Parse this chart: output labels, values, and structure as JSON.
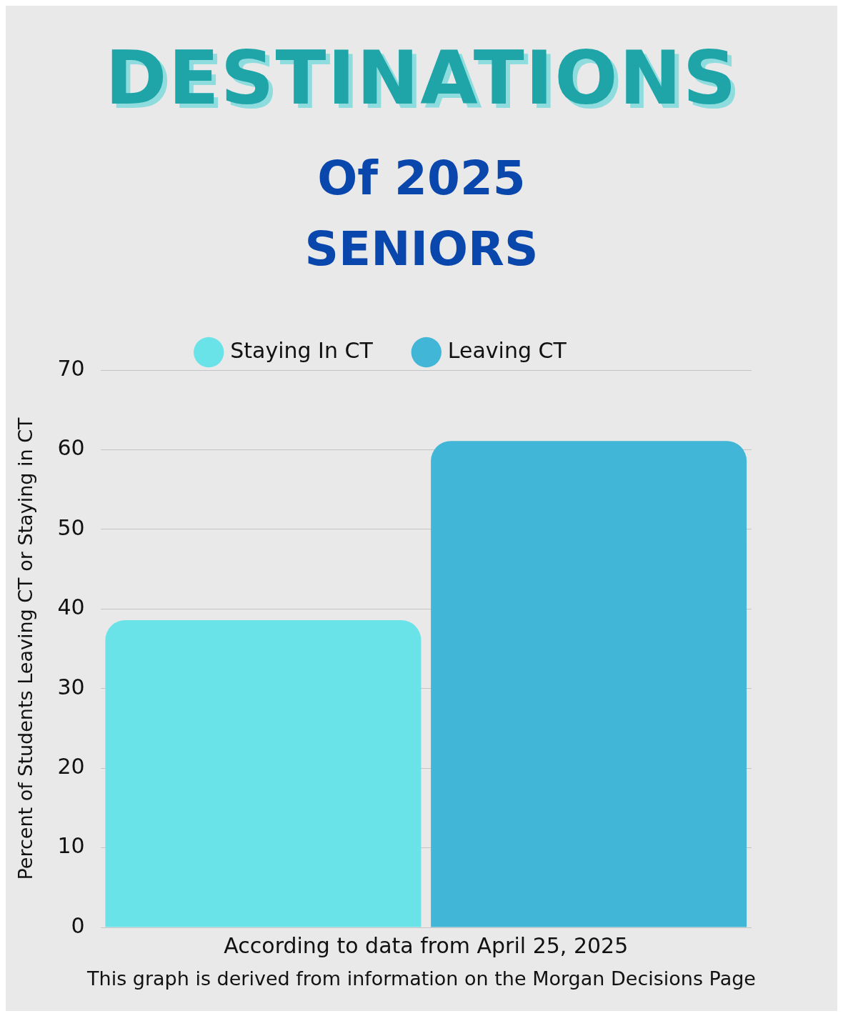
{
  "chart_data": {
    "type": "bar",
    "title": "DESTINATIONS",
    "subtitle": "Of 2025 SENIORS",
    "categories": [
      null
    ],
    "series": [
      {
        "name": "Staying In CT",
        "color": "#6ae3e8",
        "values": [
          38.6
        ]
      },
      {
        "name": "Leaving CT",
        "color": "#42b6d6",
        "values": [
          61.1
        ]
      }
    ],
    "ylabel": "Percent of Students Leaving CT or Staying in CT",
    "xlabel": "According to data from April 25, 2025",
    "annotations": [
      "This graph is derived from  information on the Morgan Decisions Page"
    ],
    "ylim": [
      0,
      70
    ],
    "yticks": [
      0,
      10,
      20,
      30,
      40,
      50,
      60,
      70
    ],
    "grid": "y",
    "legend": "top"
  }
}
